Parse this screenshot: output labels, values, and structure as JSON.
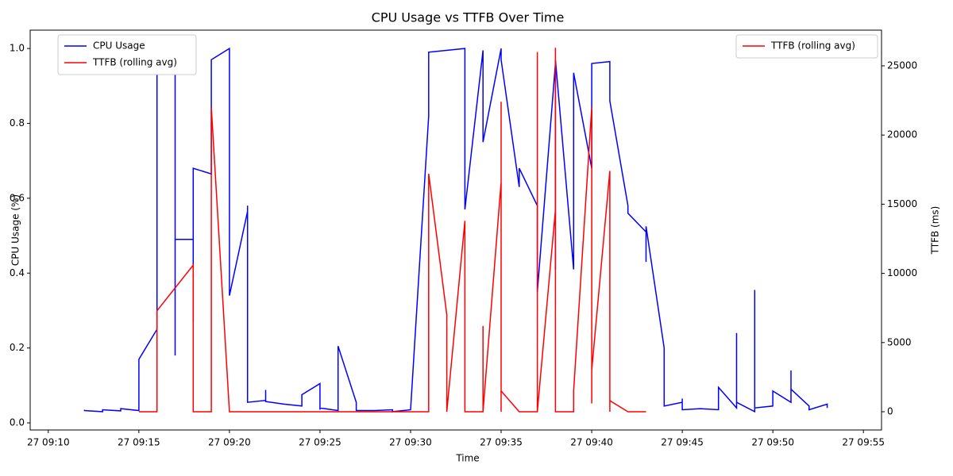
{
  "chart_data": {
    "type": "line",
    "title": "CPU Usage vs TTFB Over Time",
    "xlabel": "Time",
    "ylabel": "CPU Usage (%)",
    "y2label": "TTFB (ms)",
    "xlim": [
      "27 09:09",
      "27 09:56"
    ],
    "xticks": [
      "27 09:10",
      "27 09:15",
      "27 09:20",
      "27 09:25",
      "27 09:30",
      "27 09:35",
      "27 09:40",
      "27 09:45",
      "27 09:50",
      "27 09:55"
    ],
    "ylim": [
      -0.019,
      1.049
    ],
    "yticks": [
      {
        "value": 0,
        "label": "0.0"
      },
      {
        "value": 0.2,
        "label": "0.2"
      },
      {
        "value": 0.4,
        "label": "0.4"
      },
      {
        "value": 0.6,
        "label": "0.6"
      },
      {
        "value": 0.8,
        "label": "0.8"
      },
      {
        "value": 1,
        "label": "1.0"
      }
    ],
    "y2lim": [
      -1319,
      27580
    ],
    "y2ticks": [
      0,
      5000,
      10000,
      15000,
      20000,
      25000
    ],
    "legend": "upper left",
    "y2_legend": "upper right",
    "series": [
      {
        "name": "CPU Usage",
        "color": "#0000ff",
        "axis": "y",
        "x": [
          "27 09:12",
          "27 09:12",
          "27 09:13",
          "27 09:13",
          "27 09:14",
          "27 09:14",
          "27 09:15",
          "27 09:15",
          "27 09:15",
          "27 09:16",
          "27 09:16",
          "27 09:17",
          "27 09:17",
          "27 09:17",
          "27 09:18",
          "27 09:18",
          "27 09:18",
          "27 09:18",
          "27 09:19",
          "27 09:19",
          "27 09:20",
          "27 09:20",
          "27 09:20",
          "27 09:20",
          "27 09:21",
          "27 09:21",
          "27 09:21",
          "27 09:22",
          "27 09:22",
          "27 09:22",
          "27 09:23",
          "27 09:24",
          "27 09:24",
          "27 09:25",
          "27 09:25",
          "27 09:25",
          "27 09:26",
          "27 09:26",
          "27 09:27",
          "27 09:27",
          "27 09:28",
          "27 09:29",
          "27 09:29",
          "27 09:30",
          "27 09:30",
          "27 09:31",
          "27 09:31",
          "27 09:33",
          "27 09:33",
          "27 09:33",
          "27 09:34",
          "27 09:34",
          "27 09:35",
          "27 09:35",
          "27 09:36",
          "27 09:36",
          "27 09:37",
          "27 09:37",
          "27 09:38",
          "27 09:38",
          "27 09:38",
          "27 09:39",
          "27 09:39",
          "27 09:40",
          "27 09:40",
          "27 09:41",
          "27 09:41",
          "27 09:42",
          "27 09:42",
          "27 09:43",
          "27 09:43",
          "27 09:43",
          "27 09:44",
          "27 09:44",
          "27 09:45",
          "27 09:45",
          "27 09:45",
          "27 09:46",
          "27 09:47",
          "27 09:47",
          "27 09:48",
          "27 09:48",
          "27 09:48",
          "27 09:48",
          "27 09:49",
          "27 09:49",
          "27 09:49",
          "27 09:49",
          "27 09:50",
          "27 09:50",
          "27 09:51",
          "27 09:51",
          "27 09:51",
          "27 09:51",
          "27 09:52",
          "27 09:52",
          "27 09:53",
          "27 09:53"
        ],
        "values": [
          0.035,
          0.033,
          0.03,
          0.035,
          0.032,
          0.038,
          0.033,
          0.06,
          0.17,
          0.25,
          0.97,
          1.0,
          0.18,
          0.49,
          0.49,
          0.27,
          0.36,
          0.68,
          0.665,
          0.97,
          1.0,
          0.97,
          1.0,
          0.34,
          0.565,
          0.58,
          0.055,
          0.06,
          0.088,
          0.057,
          0.05,
          0.045,
          0.075,
          0.105,
          0.035,
          0.04,
          0.033,
          0.205,
          0.055,
          0.033,
          0.033,
          0.035,
          0.03,
          0.035,
          0.035,
          0.82,
          0.99,
          1.0,
          0.995,
          0.57,
          0.995,
          0.75,
          1.0,
          0.97,
          0.63,
          0.68,
          0.58,
          0.35,
          0.96,
          0.41,
          0.97,
          0.41,
          0.935,
          0.68,
          0.96,
          0.965,
          0.86,
          0.58,
          0.56,
          0.51,
          0.43,
          0.525,
          0.2,
          0.045,
          0.055,
          0.065,
          0.035,
          0.038,
          0.035,
          0.095,
          0.04,
          0.05,
          0.24,
          0.055,
          0.03,
          0.11,
          0.355,
          0.04,
          0.045,
          0.085,
          0.055,
          0.135,
          0.14,
          0.09,
          0.045,
          0.035,
          0.05,
          0.04
        ]
      },
      {
        "name": "TTFB (rolling avg)",
        "color": "#ff0000",
        "axis": "y2",
        "x": [
          "27 09:15",
          "27 09:16",
          "27 09:16",
          "27 09:18",
          "27 09:18",
          "27 09:19",
          "27 09:19",
          "27 09:20",
          "27 09:31",
          "27 09:31",
          "27 09:31",
          "27 09:31",
          "27 09:31",
          "27 09:32",
          "27 09:32",
          "27 09:33",
          "27 09:33",
          "27 09:33",
          "27 09:33",
          "27 09:34",
          "27 09:34",
          "27 09:34",
          "27 09:35",
          "27 09:35",
          "27 09:35",
          "27 09:35",
          "27 09:35",
          "27 09:36",
          "27 09:37",
          "27 09:37",
          "27 09:37",
          "27 09:37",
          "27 09:37",
          "27 09:38",
          "27 09:38",
          "27 09:38",
          "27 09:38",
          "27 09:38",
          "27 09:39",
          "27 09:39",
          "27 09:40",
          "27 09:40",
          "27 09:40",
          "27 09:41",
          "27 09:41",
          "27 09:41",
          "27 09:41",
          "27 09:41",
          "27 09:42",
          "27 09:43"
        ],
        "values": [
          0,
          0,
          7300,
          10600,
          0,
          0,
          22000,
          0,
          0,
          4700,
          0,
          17000,
          17200,
          7000,
          0,
          13800,
          0,
          6000,
          0,
          0,
          6200,
          0,
          16600,
          0,
          22400,
          0,
          1500,
          0,
          0,
          12000,
          26000,
          4500,
          0,
          14600,
          0,
          26300,
          4000,
          0,
          0,
          1500,
          22000,
          600,
          3000,
          17400,
          0,
          9700,
          0,
          800,
          0,
          0
        ]
      }
    ]
  }
}
